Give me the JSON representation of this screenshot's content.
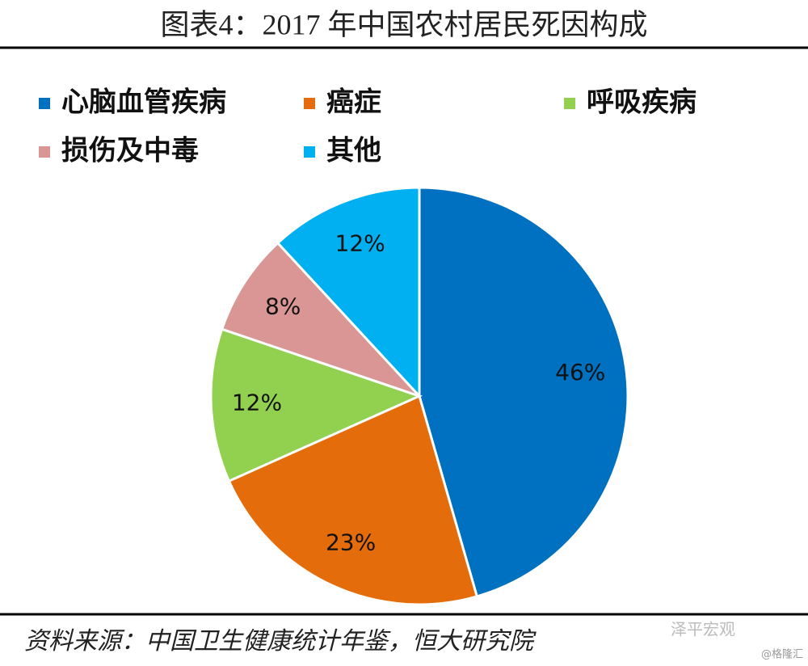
{
  "chart_data": {
    "type": "pie",
    "title": "图表4：2017 年中国农村居民死因构成",
    "categories": [
      "心脑血管疾病",
      "癌症",
      "呼吸疾病",
      "损伤及中毒",
      "其他"
    ],
    "values": [
      46,
      23,
      12,
      8,
      12
    ],
    "value_labels": [
      "46%",
      "23%",
      "12%",
      "8%",
      "12%"
    ],
    "colors": [
      "#0070c0",
      "#e46c0a",
      "#92d050",
      "#d99694",
      "#00b0f0"
    ],
    "source": "资料来源：中国卫生健康统计年鉴，恒大研究院",
    "watermark": [
      "泽平宏观",
      "@格隆汇"
    ]
  }
}
